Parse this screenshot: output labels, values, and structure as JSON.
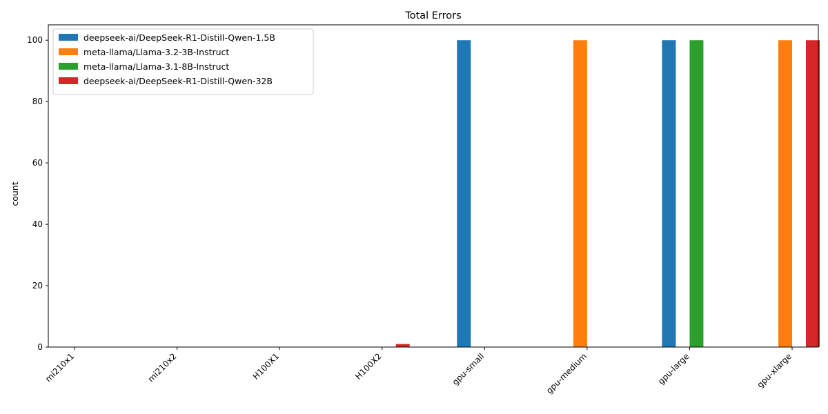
{
  "chart_data": {
    "type": "bar",
    "title": "Total Errors",
    "xlabel": "",
    "ylabel": "count",
    "ylim": [
      0,
      105
    ],
    "yticks": [
      0,
      20,
      40,
      60,
      80,
      100
    ],
    "grid": false,
    "legend_position": "top-left",
    "categories": [
      "mi210x1",
      "mi210x2",
      "H100X1",
      "H100X2",
      "gpu-small",
      "gpu-medium",
      "gpu-large",
      "gpu-xlarge"
    ],
    "series": [
      {
        "name": "deepseek-ai/DeepSeek-R1-Distill-Qwen-1.5B",
        "color": "#1f77b4",
        "values": [
          0,
          0,
          0,
          0,
          100,
          0,
          100,
          0
        ]
      },
      {
        "name": "meta-llama/Llama-3.2-3B-Instruct",
        "color": "#ff7f0e",
        "values": [
          0,
          0,
          0,
          0,
          0,
          100,
          0,
          100
        ]
      },
      {
        "name": "meta-llama/Llama-3.1-8B-Instruct",
        "color": "#2ca02c",
        "values": [
          0,
          0,
          0,
          0,
          0,
          0,
          100,
          0
        ]
      },
      {
        "name": "deepseek-ai/DeepSeek-R1-Distill-Qwen-32B",
        "color": "#d62728",
        "values": [
          0,
          0,
          0,
          1,
          0,
          0,
          0,
          100
        ]
      }
    ]
  }
}
